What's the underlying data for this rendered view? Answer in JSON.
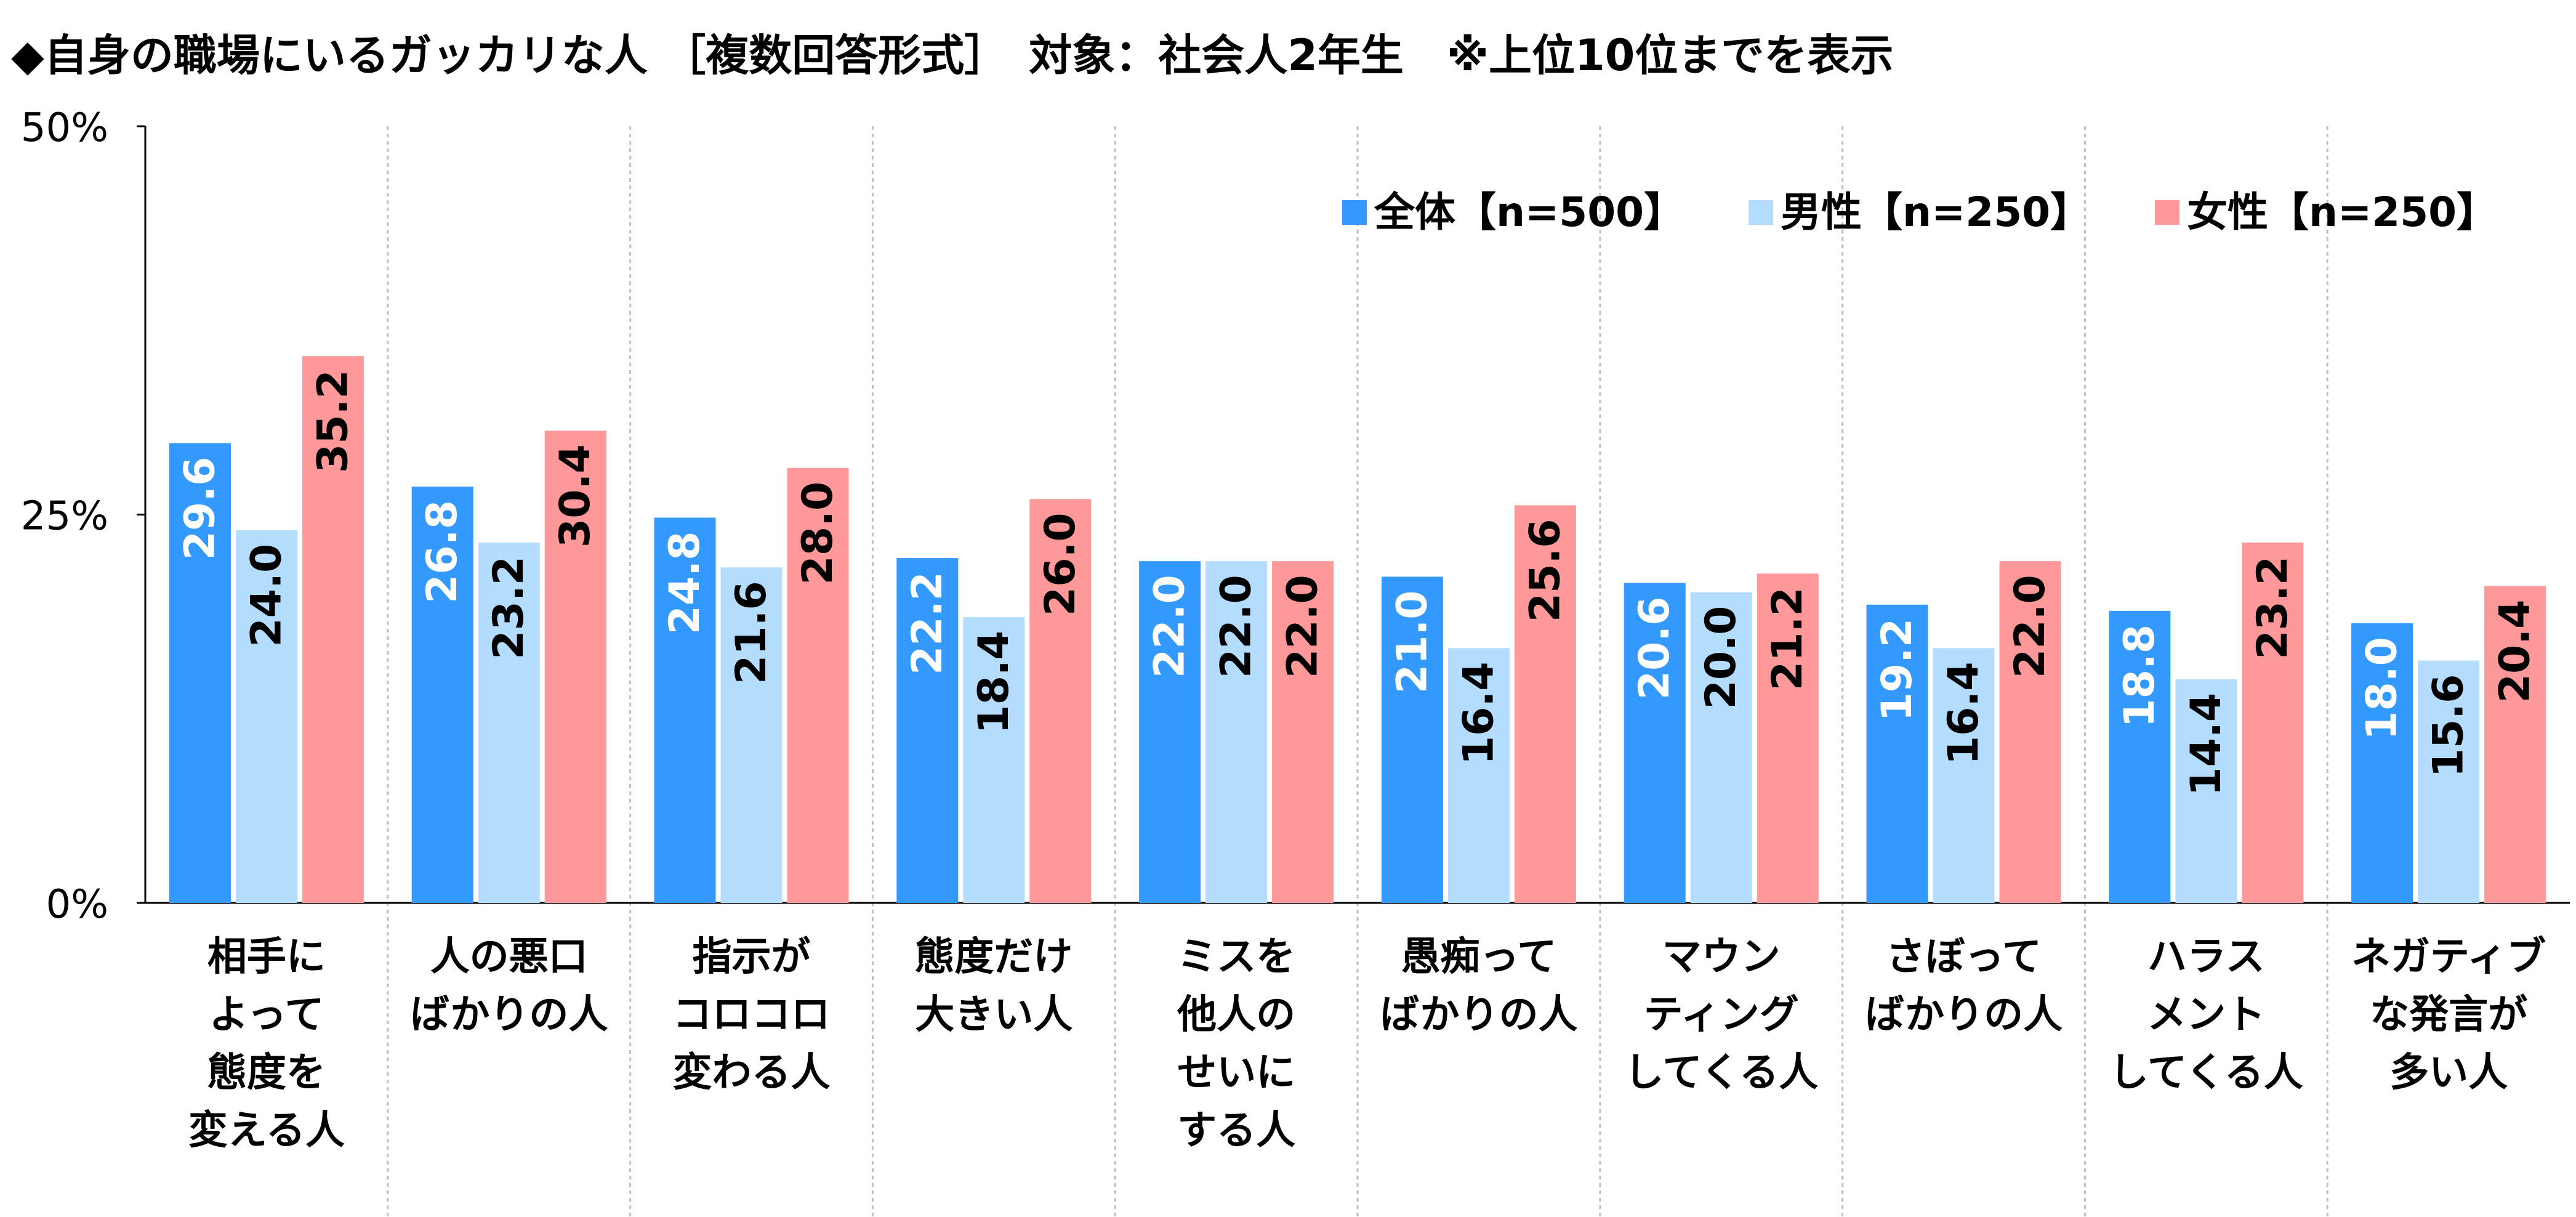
{
  "title": "◆自身の職場にいるガッカリな人 ［複数回答形式］　対象：社会人2年生　※上位10位までを表示",
  "chart_data": {
    "type": "bar",
    "title": "◆自身の職場にいるガッカリな人 ［複数回答形式］　対象：社会人2年生　※上位10位までを表示",
    "xlabel": "",
    "ylabel": "",
    "ylim": [
      0,
      50
    ],
    "yticks": [
      "0%",
      "25%",
      "50%"
    ],
    "grid": "vertical-dotted-separators",
    "legend_position": "top-right",
    "categories": [
      [
        "相手に",
        "よって",
        "態度を",
        "変える人"
      ],
      [
        "人の悪口",
        "ばかりの人"
      ],
      [
        "指示が",
        "コロコロ",
        "変わる人"
      ],
      [
        "態度だけ",
        "大きい人"
      ],
      [
        "ミスを",
        "他人の",
        "せいに",
        "する人"
      ],
      [
        "愚痴って",
        "ばかりの人"
      ],
      [
        "マウン",
        "ティング",
        "してくる人"
      ],
      [
        "さぼって",
        "ばかりの人"
      ],
      [
        "ハラス",
        "メント",
        "してくる人"
      ],
      [
        "ネガティブ",
        "な発言が",
        "多い人"
      ]
    ],
    "series": [
      {
        "name": "全体【n=500】",
        "color": "#3399ff",
        "label_color": "#ffffff",
        "values": [
          29.6,
          26.8,
          24.8,
          22.2,
          22.0,
          21.0,
          20.6,
          19.2,
          18.8,
          18.0
        ]
      },
      {
        "name": "男性【n=250】",
        "color": "#b3dcff",
        "label_color": "#000000",
        "values": [
          24.0,
          23.2,
          21.6,
          18.4,
          22.0,
          16.4,
          20.0,
          16.4,
          14.4,
          15.6
        ]
      },
      {
        "name": "女性【n=250】",
        "color": "#ff9999",
        "label_color": "#000000",
        "values": [
          35.2,
          30.4,
          28.0,
          26.0,
          22.0,
          25.6,
          21.2,
          22.0,
          23.2,
          20.4
        ]
      }
    ]
  }
}
